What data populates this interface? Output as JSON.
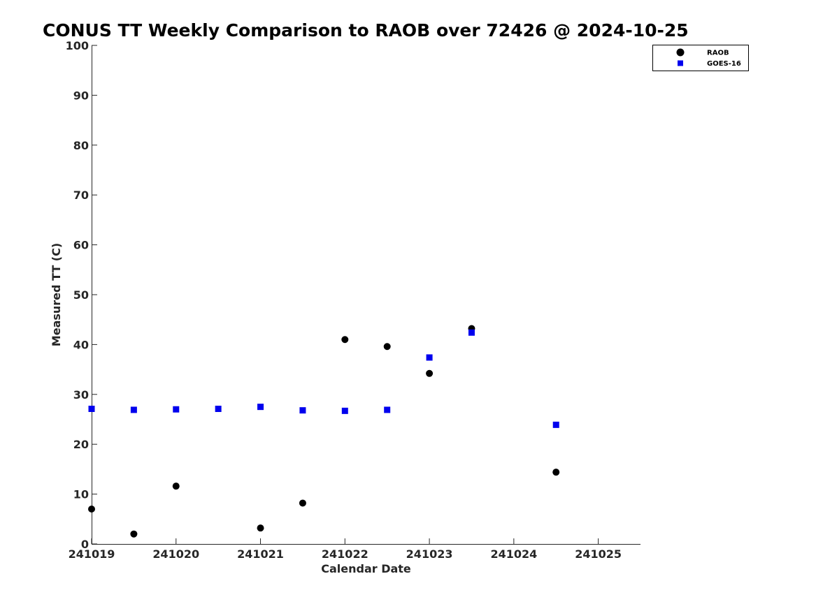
{
  "chart_data": {
    "type": "scatter",
    "title": "CONUS TT Weekly Comparison to RAOB over 72426 @ 2024-10-25",
    "xlabel": "Calendar Date",
    "ylabel": "Measured TT (C)",
    "x_ticks": [
      "241019",
      "241020",
      "241021",
      "241022",
      "241023",
      "241024",
      "241025"
    ],
    "x_tick_dates": [
      "2024-10-19",
      "2024-10-20",
      "2024-10-21",
      "2024-10-22",
      "2024-10-23",
      "2024-10-24",
      "2024-10-25"
    ],
    "xlim": [
      "2024-10-19T00:00",
      "2024-10-25T12:00"
    ],
    "ylim": [
      0,
      100
    ],
    "y_ticks": [
      0,
      10,
      20,
      30,
      40,
      50,
      60,
      70,
      80,
      90,
      100
    ],
    "grid": false,
    "legend_position": "top-right",
    "series": [
      {
        "name": "RAOB",
        "color": "#000000",
        "marker": "circle",
        "x": [
          "2024-10-19T00:00",
          "2024-10-19T12:00",
          "2024-10-20T00:00",
          "2024-10-21T00:00",
          "2024-10-21T12:00",
          "2024-10-22T00:00",
          "2024-10-22T12:00",
          "2024-10-23T00:00",
          "2024-10-23T12:00",
          "2024-10-24T12:00"
        ],
        "y": [
          7.0,
          2.0,
          11.6,
          3.2,
          8.2,
          41.0,
          39.6,
          34.2,
          43.2,
          14.4
        ]
      },
      {
        "name": "GOES-16",
        "color": "#0000ee",
        "marker": "square",
        "x": [
          "2024-10-19T00:00",
          "2024-10-19T12:00",
          "2024-10-20T00:00",
          "2024-10-20T12:00",
          "2024-10-21T00:00",
          "2024-10-21T12:00",
          "2024-10-22T00:00",
          "2024-10-22T12:00",
          "2024-10-23T00:00",
          "2024-10-23T12:00",
          "2024-10-24T12:00"
        ],
        "y": [
          27.1,
          26.9,
          27.0,
          27.1,
          27.5,
          26.8,
          26.7,
          26.9,
          37.4,
          42.4,
          23.9
        ]
      }
    ]
  }
}
